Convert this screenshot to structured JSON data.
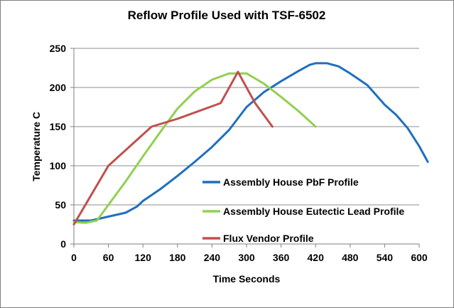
{
  "chart_data": {
    "type": "line",
    "title": "Reflow Profile Used with TSF-6502",
    "xlabel": "Time Seconds",
    "ylabel": "Temperature C",
    "xlim": [
      0,
      600
    ],
    "ylim": [
      0,
      250
    ],
    "xticks": [
      0,
      60,
      120,
      180,
      240,
      300,
      360,
      420,
      480,
      540,
      600
    ],
    "yticks": [
      0,
      50,
      100,
      150,
      200,
      250
    ],
    "x_tick_labels": [
      "0",
      "60",
      "120",
      "180",
      "240",
      "300",
      "360",
      "420",
      "480",
      "540",
      "600"
    ],
    "y_tick_labels": [
      "0",
      "50",
      "100",
      "150",
      "200",
      "250"
    ],
    "grid": {
      "horizontal": true,
      "vertical": false
    },
    "legend": "inside-right",
    "series": [
      {
        "name": "Assembly House PbF Profile",
        "color": "#1f6fbf",
        "points": [
          [
            0,
            30
          ],
          [
            30,
            30
          ],
          [
            60,
            35
          ],
          [
            90,
            40
          ],
          [
            110,
            48
          ],
          [
            120,
            55
          ],
          [
            150,
            70
          ],
          [
            180,
            87
          ],
          [
            210,
            105
          ],
          [
            240,
            124
          ],
          [
            270,
            146
          ],
          [
            300,
            175
          ],
          [
            330,
            194
          ],
          [
            360,
            208
          ],
          [
            390,
            221
          ],
          [
            410,
            229
          ],
          [
            420,
            231
          ],
          [
            440,
            231
          ],
          [
            460,
            227
          ],
          [
            480,
            218
          ],
          [
            510,
            203
          ],
          [
            540,
            178
          ],
          [
            560,
            165
          ],
          [
            580,
            148
          ],
          [
            600,
            125
          ],
          [
            615,
            105
          ]
        ]
      },
      {
        "name": "Assembly House Eutectic Lead Profile",
        "color": "#92d050",
        "points": [
          [
            0,
            28
          ],
          [
            20,
            27
          ],
          [
            40,
            30
          ],
          [
            60,
            50
          ],
          [
            90,
            80
          ],
          [
            120,
            112
          ],
          [
            150,
            143
          ],
          [
            180,
            173
          ],
          [
            210,
            195
          ],
          [
            240,
            210
          ],
          [
            270,
            218
          ],
          [
            300,
            218
          ],
          [
            330,
            205
          ],
          [
            360,
            188
          ],
          [
            390,
            170
          ],
          [
            420,
            150
          ]
        ]
      },
      {
        "name": "Flux Vendor Profile",
        "color": "#c0504d",
        "points": [
          [
            0,
            25
          ],
          [
            60,
            100
          ],
          [
            135,
            150
          ],
          [
            180,
            160
          ],
          [
            255,
            180
          ],
          [
            285,
            220
          ],
          [
            315,
            180
          ],
          [
            345,
            150
          ]
        ]
      }
    ]
  }
}
